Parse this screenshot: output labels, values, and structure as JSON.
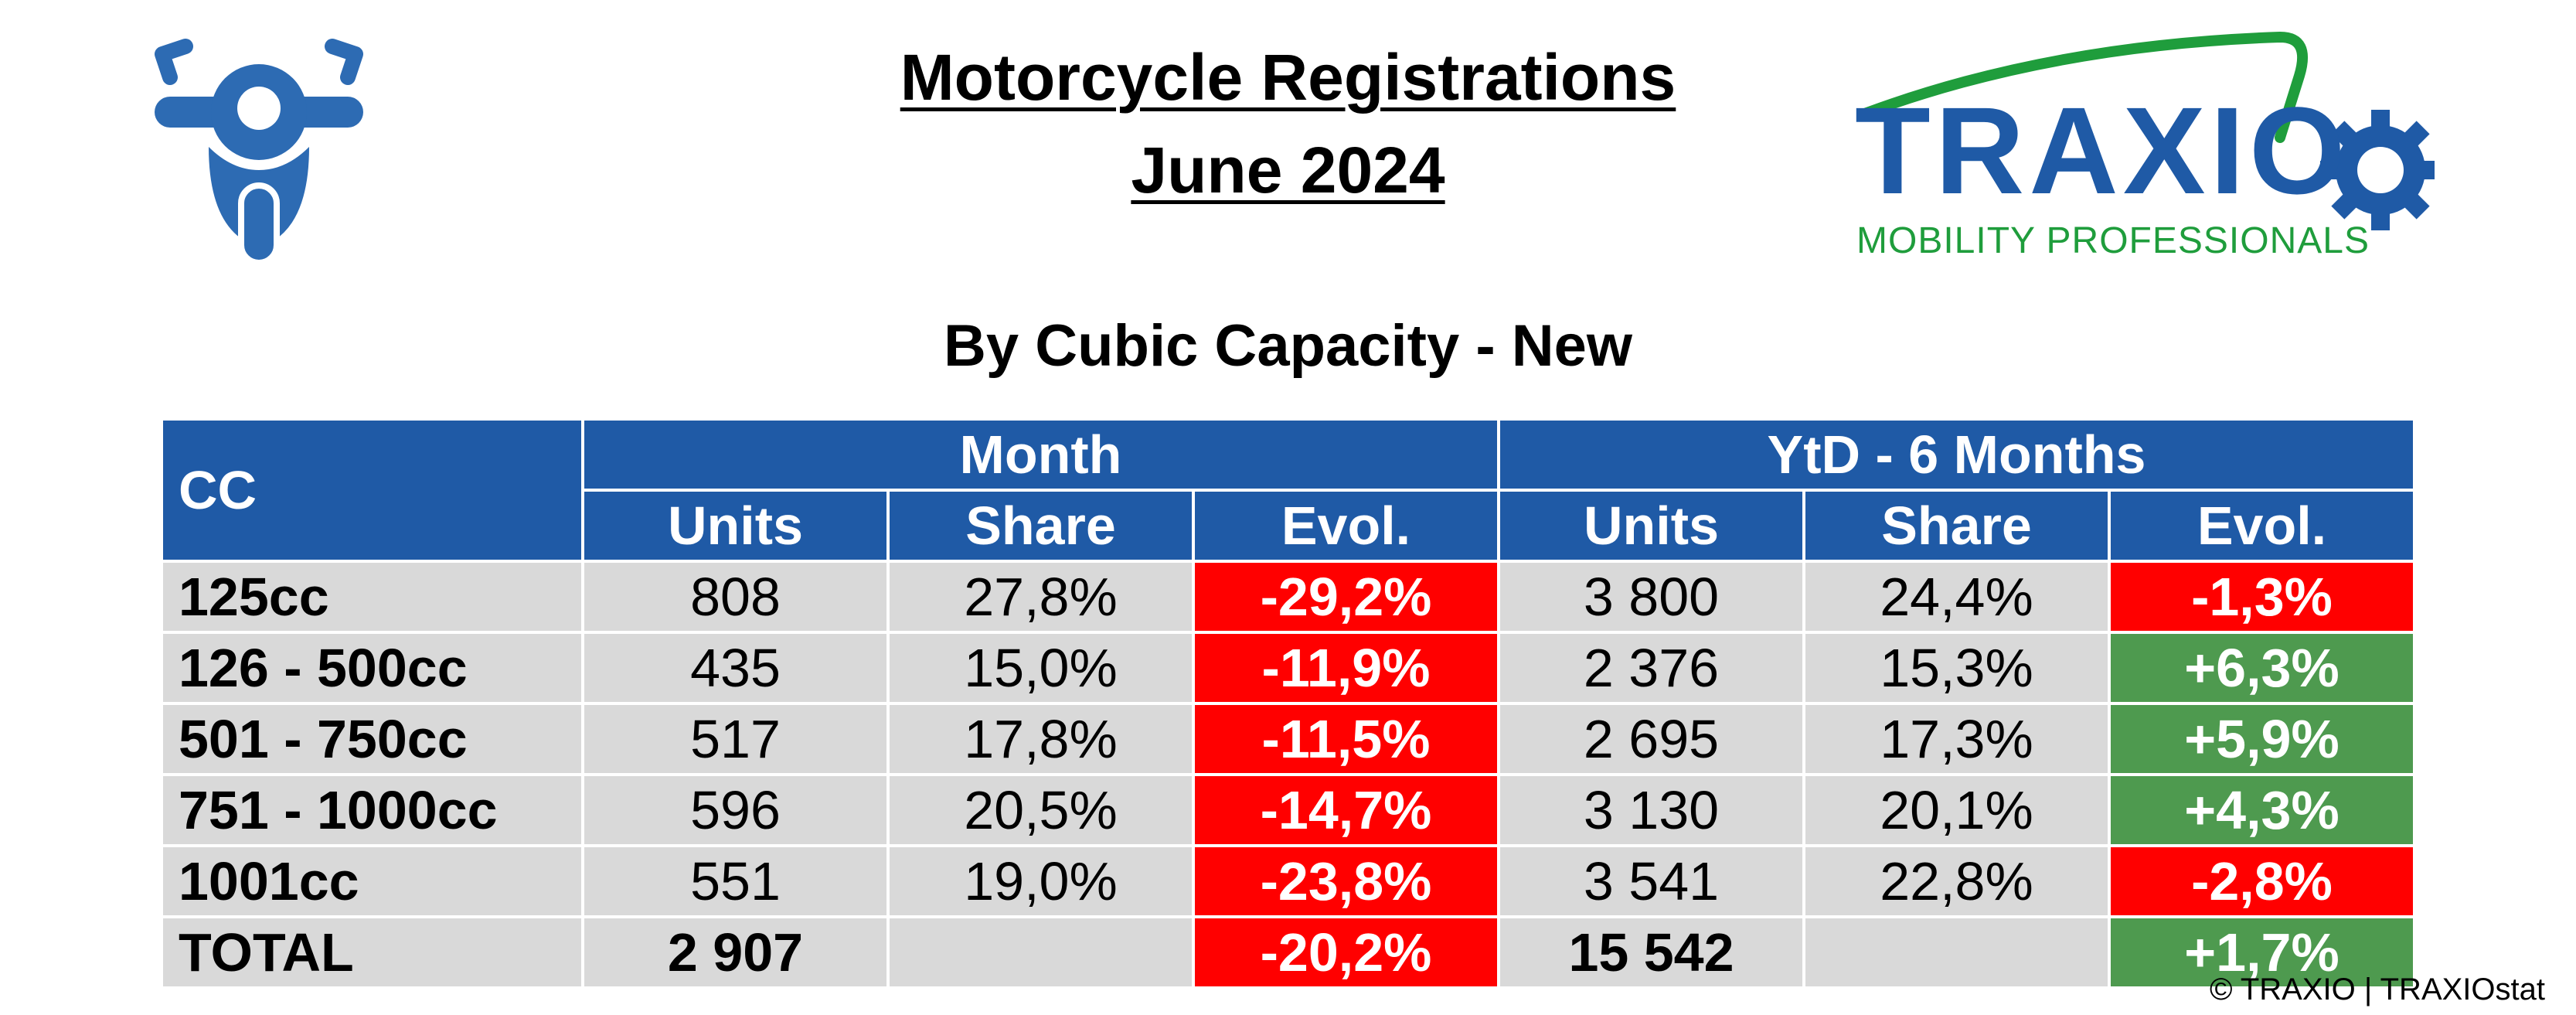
{
  "header": {
    "title_line1": "Motorcycle Registrations",
    "title_line2": "June 2024",
    "subtitle": "By Cubic Capacity - New"
  },
  "logo": {
    "word": "TRAXIO",
    "tagline": "MOBILITY PROFESSIONALS",
    "colors": {
      "blue": "#1f5aa6",
      "green": "#1f9d3c"
    }
  },
  "table": {
    "col_cc": "CC",
    "group_month": "Month",
    "group_ytd": "YtD - 6 Months",
    "sub_headers": [
      "Units",
      "Share",
      "Evol.",
      "Units",
      "Share",
      "Evol."
    ],
    "rows": [
      {
        "label": "125cc",
        "m_units": "808",
        "m_share": "27,8%",
        "m_evol": "-29,2%",
        "m_evol_status": "negative",
        "y_units": "3 800",
        "y_share": "24,4%",
        "y_evol": "-1,3%",
        "y_evol_status": "negative"
      },
      {
        "label": "126 - 500cc",
        "m_units": "435",
        "m_share": "15,0%",
        "m_evol": "-11,9%",
        "m_evol_status": "negative",
        "y_units": "2 376",
        "y_share": "15,3%",
        "y_evol": "+6,3%",
        "y_evol_status": "positive"
      },
      {
        "label": "501 - 750cc",
        "m_units": "517",
        "m_share": "17,8%",
        "m_evol": "-11,5%",
        "m_evol_status": "negative",
        "y_units": "2 695",
        "y_share": "17,3%",
        "y_evol": "+5,9%",
        "y_evol_status": "positive"
      },
      {
        "label": "751 - 1000cc",
        "m_units": "596",
        "m_share": "20,5%",
        "m_evol": "-14,7%",
        "m_evol_status": "negative",
        "y_units": "3 130",
        "y_share": "20,1%",
        "y_evol": "+4,3%",
        "y_evol_status": "positive"
      },
      {
        "label": "1001cc",
        "m_units": "551",
        "m_share": "19,0%",
        "m_evol": "-23,8%",
        "m_evol_status": "negative",
        "y_units": "3 541",
        "y_share": "22,8%",
        "y_evol": "-2,8%",
        "y_evol_status": "negative"
      }
    ],
    "total": {
      "label": "TOTAL",
      "m_units": "2 907",
      "m_share": "",
      "m_evol": "-20,2%",
      "m_evol_status": "negative",
      "y_units": "15 542",
      "y_share": "",
      "y_evol": "+1,7%",
      "y_evol_status": "positive"
    },
    "colors": {
      "header": "#1f5aa6",
      "row": "#d9d9d9",
      "negative": "#ff0000",
      "positive": "#4e9a4f"
    }
  },
  "footer": {
    "credit": "© TRAXIO | TRAXIOstat"
  }
}
